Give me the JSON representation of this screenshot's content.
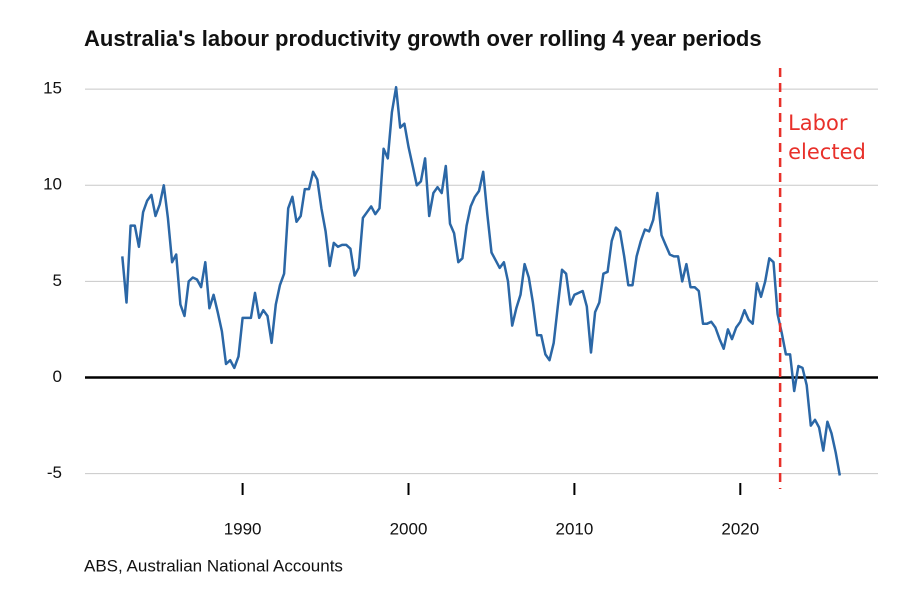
{
  "chart_data": {
    "type": "line",
    "title": "Australia's labour productivity growth over rolling 4 year periods",
    "source": "ABS, Australian National Accounts",
    "color": "#2b67a6",
    "x": [
      1982.75,
      1983,
      1983.25,
      1983.5,
      1983.75,
      1984,
      1984.25,
      1984.5,
      1984.75,
      1985,
      1985.25,
      1985.5,
      1985.75,
      1986,
      1986.25,
      1986.5,
      1986.75,
      1987,
      1987.25,
      1987.5,
      1987.75,
      1988,
      1988.25,
      1988.5,
      1988.75,
      1989,
      1989.25,
      1989.5,
      1989.75,
      1990,
      1990.25,
      1990.5,
      1990.75,
      1991,
      1991.25,
      1991.5,
      1991.75,
      1992,
      1992.25,
      1992.5,
      1992.75,
      1993,
      1993.25,
      1993.5,
      1993.75,
      1994,
      1994.25,
      1994.5,
      1994.75,
      1995,
      1995.25,
      1995.5,
      1995.75,
      1996,
      1996.25,
      1996.5,
      1996.75,
      1997,
      1997.25,
      1997.5,
      1997.75,
      1998,
      1998.25,
      1998.5,
      1998.75,
      1999,
      1999.25,
      1999.5,
      1999.75,
      2000,
      2000.25,
      2000.5,
      2000.75,
      2001,
      2001.25,
      2001.5,
      2001.75,
      2002,
      2002.25,
      2002.5,
      2002.75,
      2003,
      2003.25,
      2003.5,
      2003.75,
      2004,
      2004.25,
      2004.5,
      2004.75,
      2005,
      2005.25,
      2005.5,
      2005.75,
      2006,
      2006.25,
      2006.5,
      2006.75,
      2007,
      2007.25,
      2007.5,
      2007.75,
      2008,
      2008.25,
      2008.5,
      2008.75,
      2009,
      2009.25,
      2009.5,
      2009.75,
      2010,
      2010.25,
      2010.5,
      2010.75,
      2011,
      2011.25,
      2011.5,
      2011.75,
      2012,
      2012.25,
      2012.5,
      2012.75,
      2013,
      2013.25,
      2013.5,
      2013.75,
      2014,
      2014.25,
      2014.5,
      2014.75,
      2015,
      2015.25,
      2015.5,
      2015.75,
      2016,
      2016.25,
      2016.5,
      2016.75,
      2017,
      2017.25,
      2017.5,
      2017.75,
      2018,
      2018.25,
      2018.5,
      2018.75,
      2019,
      2019.25,
      2019.5,
      2019.75,
      2020,
      2020.25,
      2020.5,
      2020.75,
      2021,
      2021.25,
      2021.5,
      2021.75,
      2022,
      2022.25,
      2022.5,
      2022.75,
      2023,
      2023.25,
      2023.5,
      2023.75,
      2024,
      2024.25,
      2024.5,
      2024.75,
      2025,
      2025.25,
      2025.5,
      2025.75,
      2026
    ],
    "values": [
      6.3,
      3.9,
      7.9,
      7.9,
      6.8,
      8.6,
      9.2,
      9.5,
      8.4,
      9.0,
      10.0,
      8.3,
      6.0,
      6.4,
      3.8,
      3.2,
      5.0,
      5.2,
      5.1,
      4.7,
      6.0,
      3.6,
      4.3,
      3.4,
      2.4,
      0.7,
      0.9,
      0.5,
      1.1,
      3.1,
      3.1,
      3.1,
      4.4,
      3.1,
      3.5,
      3.2,
      1.8,
      3.8,
      4.8,
      5.4,
      8.8,
      9.4,
      8.1,
      8.4,
      9.8,
      9.8,
      10.7,
      10.3,
      8.8,
      7.6,
      5.8,
      7.0,
      6.8,
      6.9,
      6.9,
      6.7,
      5.3,
      5.7,
      8.3,
      8.6,
      8.9,
      8.5,
      8.8,
      11.9,
      11.4,
      13.8,
      15.1,
      13.0,
      13.2,
      12.0,
      11.0,
      10.0,
      10.2,
      11.4,
      8.4,
      9.6,
      9.9,
      9.6,
      11.0,
      8.0,
      7.5,
      6.0,
      6.2,
      7.9,
      8.9,
      9.4,
      9.7,
      10.7,
      8.5,
      6.5,
      6.1,
      5.7,
      6.0,
      5.0,
      2.7,
      3.6,
      4.3,
      5.9,
      5.2,
      3.9,
      2.2,
      2.2,
      1.2,
      0.9,
      1.8,
      3.7,
      5.6,
      5.4,
      3.8,
      4.3,
      4.4,
      4.5,
      3.7,
      1.3,
      3.4,
      3.9,
      5.4,
      5.5,
      7.1,
      7.8,
      7.6,
      6.3,
      4.8,
      4.8,
      6.3,
      7.1,
      7.7,
      7.6,
      8.2,
      9.6,
      7.4,
      6.9,
      6.4,
      6.3,
      6.3,
      5.0,
      5.9,
      4.7,
      4.7,
      4.5,
      2.8,
      2.8,
      2.9,
      2.6,
      2.0,
      1.5,
      2.5,
      2.0,
      2.6,
      2.9,
      3.5,
      3.0,
      2.8,
      4.9,
      4.2,
      5.0,
      6.2,
      6.0,
      3.3,
      2.3,
      1.2,
      1.2,
      -0.7,
      0.6,
      0.5,
      -0.4,
      -2.5,
      -2.2,
      -2.6,
      -3.8,
      -2.3,
      -2.9,
      -3.9,
      -5.1
    ],
    "xlim": [
      1980.5,
      2028.3
    ],
    "xticks": [
      1990,
      2000,
      2010,
      2020
    ],
    "ylim": [
      -5.8,
      16.1
    ],
    "yticks": [
      -5,
      0,
      5,
      10,
      15
    ],
    "grid": true,
    "zero_line": true,
    "annotation": {
      "x": 2022.4,
      "lines": [
        "Labor",
        "elected"
      ],
      "color": "#e8302a"
    }
  }
}
